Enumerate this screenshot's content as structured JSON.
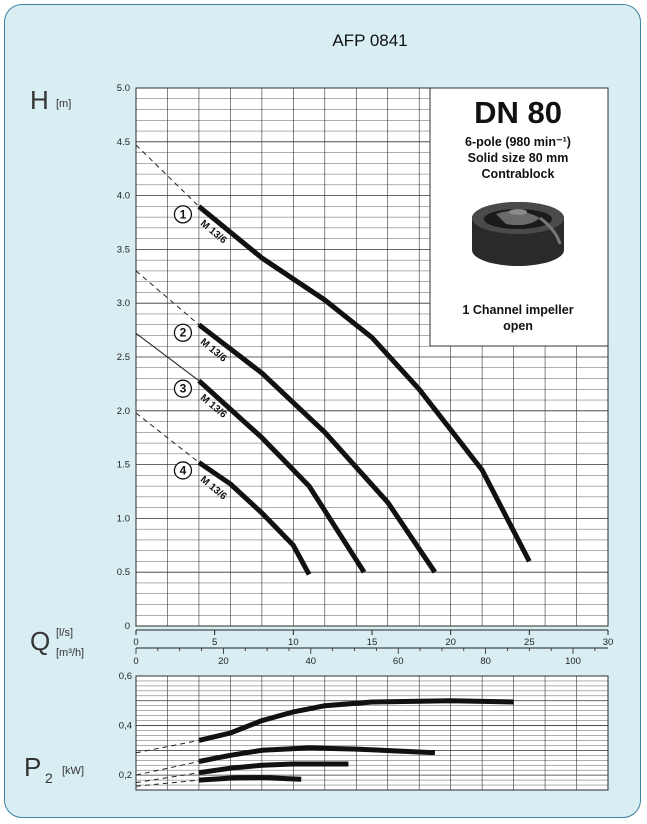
{
  "title": "AFP 0841",
  "axes": {
    "h_symbol": "H",
    "h_unit": "[m]",
    "q_symbol": "Q",
    "q_unit_ls": "[l/s]",
    "q_unit_m3h": "[m³/h]",
    "p_symbol": "P",
    "p_sub": "2",
    "p_unit": "[kW]"
  },
  "info_box": {
    "heading": "DN 80",
    "line1": "6-pole (980 min⁻¹)",
    "line2": "Solid size 80 mm",
    "line3": "Contrablock",
    "caption1": "1 Channel impeller",
    "caption2": "open",
    "image_icon": "channel-impeller-image"
  },
  "colors": {
    "background": "#d9eef3",
    "border": "#3d7fa0",
    "curve": "#111111"
  },
  "chart_data": [
    {
      "type": "line",
      "xlabel": "Q [l/s]",
      "ylabel": "H [m]",
      "xlim": [
        0,
        30
      ],
      "ylim": [
        0,
        5.0
      ],
      "x_ticks": [
        "0",
        "5",
        "10",
        "15",
        "20",
        "25",
        "30"
      ],
      "y_ticks": [
        "0",
        "0.5",
        "1.0",
        "1.5",
        "2.0",
        "2.5",
        "3.0",
        "3.5",
        "4.0",
        "4.5",
        "5.0"
      ],
      "secondary_x_ticks": [
        "0",
        "20",
        "40",
        "60",
        "80",
        "100"
      ],
      "secondary_xlim": [
        0,
        108
      ],
      "grid": true,
      "series": [
        {
          "label": "1",
          "model": "M 13/6",
          "dashed": [
            [
              0,
              4.47
            ],
            [
              4,
              3.9
            ]
          ],
          "points": [
            [
              4,
              3.9
            ],
            [
              8,
              3.42
            ],
            [
              12,
              3.03
            ],
            [
              15,
              2.68
            ],
            [
              18,
              2.2
            ],
            [
              22,
              1.45
            ],
            [
              25,
              0.6
            ]
          ]
        },
        {
          "label": "2",
          "model": "M 13/6",
          "dashed": [
            [
              0,
              3.3
            ],
            [
              4,
              2.8
            ]
          ],
          "points": [
            [
              4,
              2.8
            ],
            [
              8,
              2.35
            ],
            [
              12,
              1.8
            ],
            [
              16,
              1.15
            ],
            [
              19,
              0.5
            ]
          ]
        },
        {
          "label": "3",
          "model": "M 13/6",
          "dashed": [
            [
              0,
              2.72
            ],
            [
              4,
              2.28
            ]
          ],
          "points": [
            [
              4,
              2.28
            ],
            [
              8,
              1.75
            ],
            [
              11,
              1.3
            ],
            [
              14.5,
              0.5
            ]
          ]
        },
        {
          "label": "4",
          "model": "M 13/6",
          "dashed": [
            [
              0,
              1.98
            ],
            [
              4,
              1.52
            ]
          ],
          "points": [
            [
              4,
              1.52
            ],
            [
              6,
              1.32
            ],
            [
              8,
              1.05
            ],
            [
              10,
              0.75
            ],
            [
              11,
              0.48
            ]
          ]
        }
      ]
    },
    {
      "type": "line",
      "ylabel": "P2 [kW]",
      "xlim": [
        0,
        30
      ],
      "ylim": [
        0.14,
        0.6
      ],
      "y_ticks": [
        "0,2",
        "0,4",
        "0,6"
      ],
      "y_tick_values": [
        0.2,
        0.4,
        0.6
      ],
      "grid": true,
      "series": [
        {
          "label": "1",
          "dashed": [
            [
              0,
              0.29
            ],
            [
              4,
              0.34
            ]
          ],
          "points": [
            [
              4,
              0.34
            ],
            [
              6,
              0.37
            ],
            [
              8,
              0.42
            ],
            [
              10,
              0.455
            ],
            [
              12,
              0.48
            ],
            [
              15,
              0.495
            ],
            [
              20,
              0.5
            ],
            [
              24,
              0.495
            ]
          ]
        },
        {
          "label": "2",
          "dashed": [
            [
              0,
              0.2
            ],
            [
              4,
              0.255
            ]
          ],
          "points": [
            [
              4,
              0.255
            ],
            [
              6,
              0.28
            ],
            [
              8,
              0.3
            ],
            [
              11,
              0.31
            ],
            [
              14,
              0.305
            ],
            [
              19,
              0.29
            ]
          ]
        },
        {
          "label": "3",
          "dashed": [
            [
              0,
              0.17
            ],
            [
              4,
              0.21
            ]
          ],
          "points": [
            [
              4,
              0.21
            ],
            [
              6,
              0.228
            ],
            [
              8,
              0.24
            ],
            [
              10,
              0.245
            ],
            [
              13.5,
              0.245
            ]
          ]
        },
        {
          "label": "4",
          "dashed": [
            [
              0,
              0.155
            ],
            [
              4,
              0.18
            ]
          ],
          "points": [
            [
              4,
              0.18
            ],
            [
              6,
              0.188
            ],
            [
              8,
              0.19
            ],
            [
              10.5,
              0.183
            ]
          ]
        }
      ]
    }
  ]
}
